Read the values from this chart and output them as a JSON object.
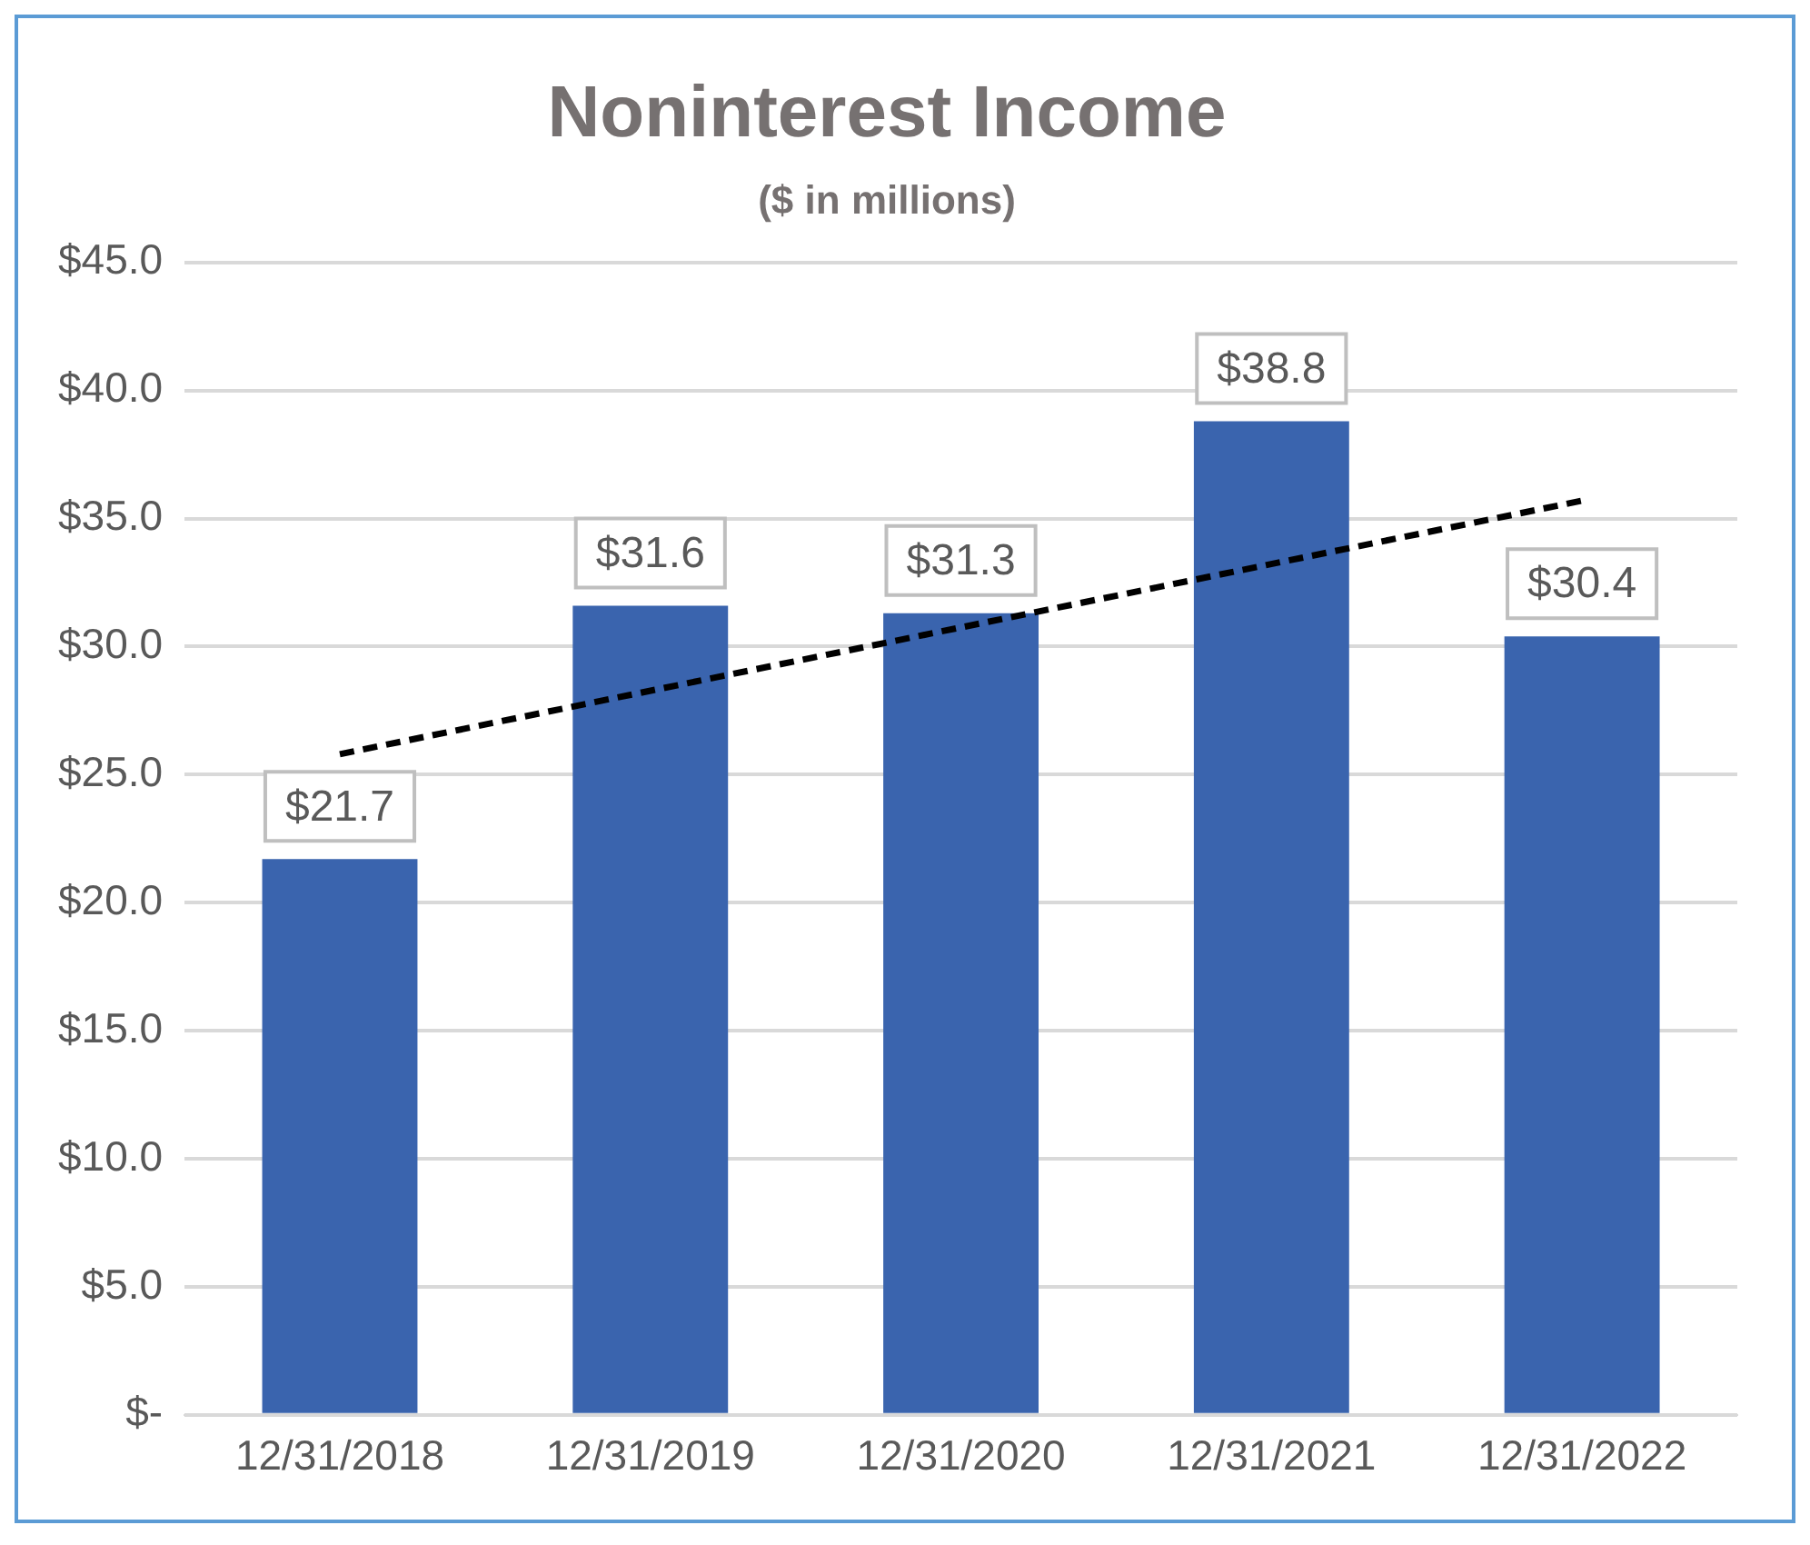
{
  "chart_data": {
    "type": "bar",
    "title": "Noninterest Income",
    "subtitle": "($ in millions)",
    "categories": [
      "12/31/2018",
      "12/31/2019",
      "12/31/2020",
      "12/31/2021",
      "12/31/2022"
    ],
    "series": [
      {
        "color": "#3a64ae",
        "values": [
          21.7,
          31.6,
          31.3,
          38.8,
          30.4
        ],
        "value_labels": [
          "$21.7",
          "$31.6",
          "$31.3",
          "$38.8",
          "$30.4"
        ]
      },
      {
        "type": "line",
        "color": "#000000",
        "line_style": "dashed",
        "marker": "none",
        "x": [
          "12/31/2018",
          "12/31/2022"
        ],
        "values": [
          25.8,
          35.7
        ]
      }
    ],
    "ylim": [
      0,
      45
    ],
    "yticks": [
      {
        "value": 0,
        "label": "$-"
      },
      {
        "value": 5,
        "label": "$5.0"
      },
      {
        "value": 10,
        "label": "$10.0"
      },
      {
        "value": 15,
        "label": "$15.0"
      },
      {
        "value": 20,
        "label": "$20.0"
      },
      {
        "value": 25,
        "label": "$25.0"
      },
      {
        "value": 30,
        "label": "$30.0"
      },
      {
        "value": 35,
        "label": "$35.0"
      },
      {
        "value": 40,
        "label": "$40.0"
      },
      {
        "value": 45,
        "label": "$45.0"
      }
    ],
    "grid": "y",
    "legend": false
  }
}
